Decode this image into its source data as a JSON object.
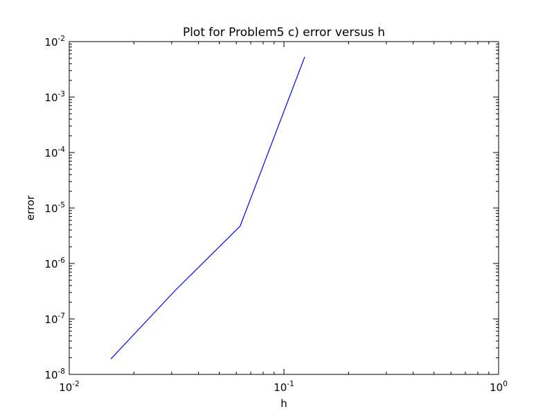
{
  "chart_data": {
    "type": "line",
    "title": "Plot for Problem5 c) error versus h",
    "xlabel": "h",
    "ylabel": "error",
    "xscale": "log",
    "yscale": "log",
    "xlim": [
      0.01,
      1
    ],
    "ylim": [
      1e-08,
      0.01
    ],
    "grid": false,
    "x_ticks": [
      {
        "value": 0.01,
        "base": "10",
        "exp": "-2"
      },
      {
        "value": 0.1,
        "base": "10",
        "exp": "-1"
      },
      {
        "value": 1,
        "base": "10",
        "exp": "0"
      }
    ],
    "y_ticks": [
      {
        "value": 1e-08,
        "base": "10",
        "exp": "-8"
      },
      {
        "value": 1e-07,
        "base": "10",
        "exp": "-7"
      },
      {
        "value": 1e-06,
        "base": "10",
        "exp": "-6"
      },
      {
        "value": 1e-05,
        "base": "10",
        "exp": "-5"
      },
      {
        "value": 0.0001,
        "base": "10",
        "exp": "-4"
      },
      {
        "value": 0.001,
        "base": "10",
        "exp": "-3"
      },
      {
        "value": 0.01,
        "base": "10",
        "exp": "-2"
      }
    ],
    "series": [
      {
        "color": "#0000ff",
        "x": [
          0.015625,
          0.03125,
          0.0625,
          0.125
        ],
        "y": [
          1.9e-08,
          3.3e-07,
          4.7e-06,
          0.0053
        ]
      }
    ]
  }
}
